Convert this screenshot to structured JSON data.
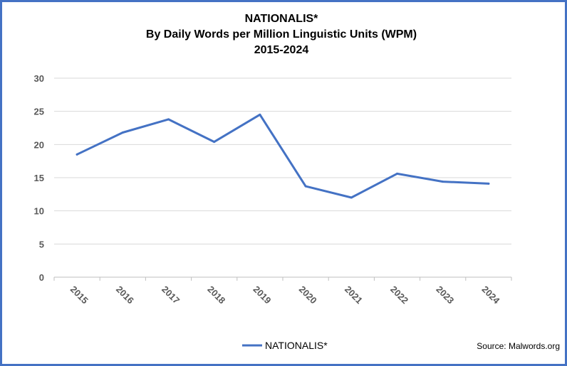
{
  "chart_data": {
    "type": "line",
    "title_lines": [
      "NATIONALIS*",
      "By Daily Words per Million Linguistic Units (WPM)",
      "2015-2024"
    ],
    "x": [
      "2015",
      "2016",
      "2017",
      "2018",
      "2019",
      "2020",
      "2021",
      "2022",
      "2023",
      "2024"
    ],
    "series": [
      {
        "name": "NATIONALIS*",
        "values": [
          18.5,
          21.8,
          23.8,
          20.4,
          24.5,
          13.7,
          12.0,
          15.6,
          14.4,
          14.1
        ],
        "color": "#4472c4"
      }
    ],
    "yticks": [
      "0",
      "5",
      "10",
      "15",
      "20",
      "25",
      "30"
    ],
    "ylim": [
      0,
      30
    ],
    "grid": true,
    "legend_position": "bottom",
    "source": "Source: Malwords.org"
  }
}
